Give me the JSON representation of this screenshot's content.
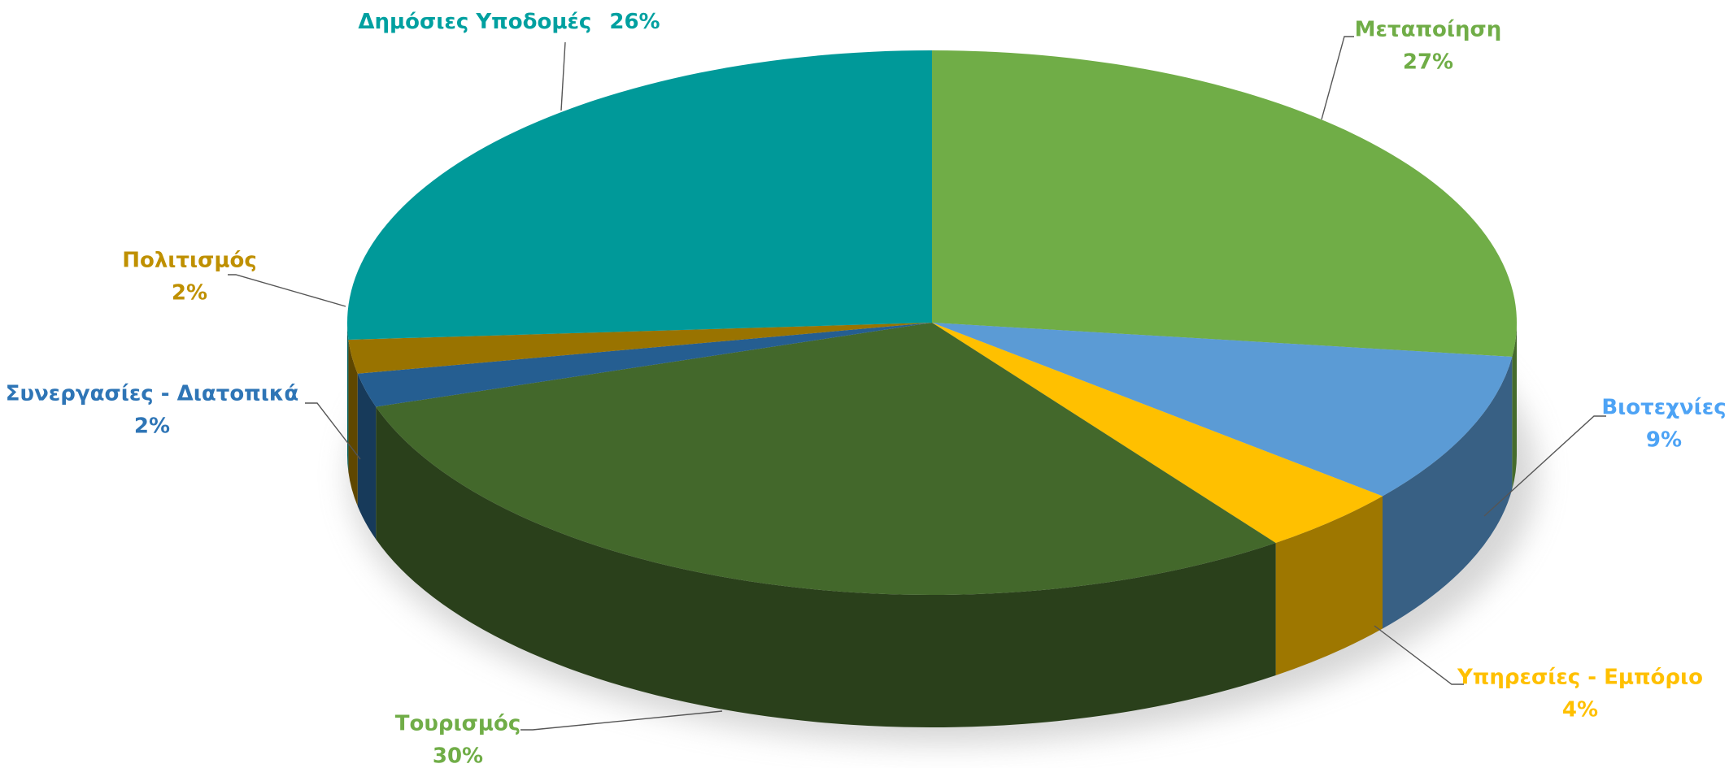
{
  "chart_data": {
    "type": "pie3d",
    "categories": [
      "Μεταποίηση",
      "Βιοτεχνίες",
      "Υπηρεσίες - Εμπόριο",
      "Τουρισμός",
      "Συνεργασίες - Διατοπικά",
      "Πολιτισμός",
      "Δημόσιες Υποδομές"
    ],
    "values": [
      27,
      9,
      4,
      30,
      2,
      2,
      26
    ],
    "value_labels": [
      "27%",
      "9%",
      "4%",
      "30%",
      "2%",
      "2%",
      "26%"
    ],
    "colors": [
      "#70ad47",
      "#5b9bd5",
      "#ffc000",
      "#43682b",
      "#255e91",
      "#997300",
      "#009999"
    ],
    "label_colors": [
      "#70ad47",
      "#4da3f5",
      "#ffc000",
      "#70ad47",
      "#2e75b6",
      "#bf9000",
      "#00a0a0"
    ]
  }
}
